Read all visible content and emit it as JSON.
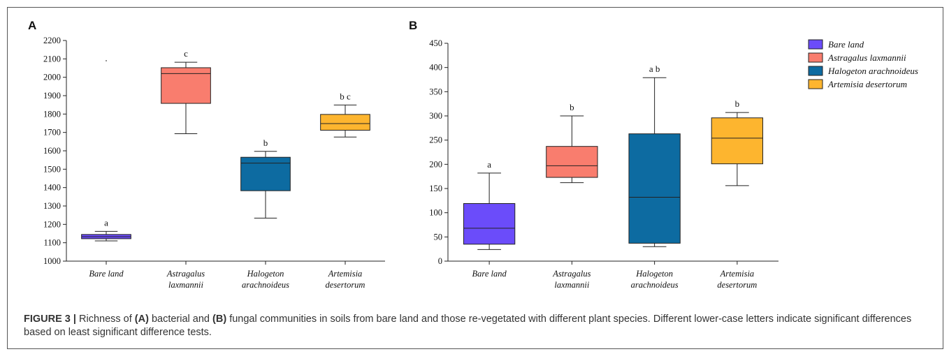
{
  "caption": {
    "figure_label": "FIGURE 3 |",
    "part1": " Richness of ",
    "a_ref": "(A)",
    "part2": " bacterial and ",
    "b_ref": "(B)",
    "part3": " fungal communities in soils from bare land and those re-vegetated with different plant species. Different lower-case letters indicate significant differences based on least significant difference tests."
  },
  "legend": [
    {
      "label": "Bare land",
      "color": "#6b4cfa"
    },
    {
      "label": "Astragalus laxmannii",
      "color": "#f97d6e"
    },
    {
      "label": "Halogeton arachnoideus",
      "color": "#0d6ba1"
    },
    {
      "label": "Artemisia desertorum",
      "color": "#fdb52f"
    }
  ],
  "chart_data": [
    {
      "panel": "A",
      "type": "box",
      "categories": [
        [
          "Bare land"
        ],
        [
          "Astragalus",
          "laxmannii"
        ],
        [
          "Halogeton",
          "arachnoideus"
        ],
        [
          "Artemisia",
          "desertorum"
        ]
      ],
      "colors": [
        "#6b4cfa",
        "#f97d6e",
        "#0d6ba1",
        "#fdb52f"
      ],
      "ylim": [
        1000,
        2200
      ],
      "yticks": [
        1000,
        1100,
        1200,
        1300,
        1400,
        1500,
        1600,
        1700,
        1800,
        1900,
        2000,
        2100,
        2200
      ],
      "boxes": [
        {
          "min": 1110,
          "q1": 1122,
          "median": 1133,
          "q3": 1145,
          "max": 1162,
          "letter": "a",
          "outliers": [
            2090
          ]
        },
        {
          "min": 1693,
          "q1": 1858,
          "median": 2020,
          "q3": 2052,
          "max": 2082,
          "letter": "c",
          "outliers": []
        },
        {
          "min": 1234,
          "q1": 1383,
          "median": 1533,
          "q3": 1565,
          "max": 1597,
          "letter": "b",
          "outliers": []
        },
        {
          "min": 1675,
          "q1": 1712,
          "median": 1748,
          "q3": 1798,
          "max": 1849,
          "letter": "b c",
          "outliers": []
        }
      ]
    },
    {
      "panel": "B",
      "type": "box",
      "categories": [
        [
          "Bare land"
        ],
        [
          "Astragalus",
          "laxmannii"
        ],
        [
          "Halogeton",
          "arachnoideus"
        ],
        [
          "Artemisia",
          "desertorum"
        ]
      ],
      "colors": [
        "#6b4cfa",
        "#f97d6e",
        "#0d6ba1",
        "#fdb52f"
      ],
      "ylim": [
        0,
        450
      ],
      "yticks": [
        0,
        50,
        100,
        150,
        200,
        250,
        300,
        350,
        400,
        450
      ],
      "boxes": [
        {
          "min": 24,
          "q1": 35,
          "median": 68,
          "q3": 119,
          "max": 182,
          "letter": "a",
          "outliers": []
        },
        {
          "min": 162,
          "q1": 173,
          "median": 197,
          "q3": 237,
          "max": 300,
          "letter": "b",
          "outliers": []
        },
        {
          "min": 30,
          "q1": 37,
          "median": 132,
          "q3": 263,
          "max": 379,
          "letter": "a b",
          "outliers": []
        },
        {
          "min": 156,
          "q1": 201,
          "median": 254,
          "q3": 296,
          "max": 307,
          "letter": "b",
          "outliers": []
        }
      ]
    }
  ]
}
